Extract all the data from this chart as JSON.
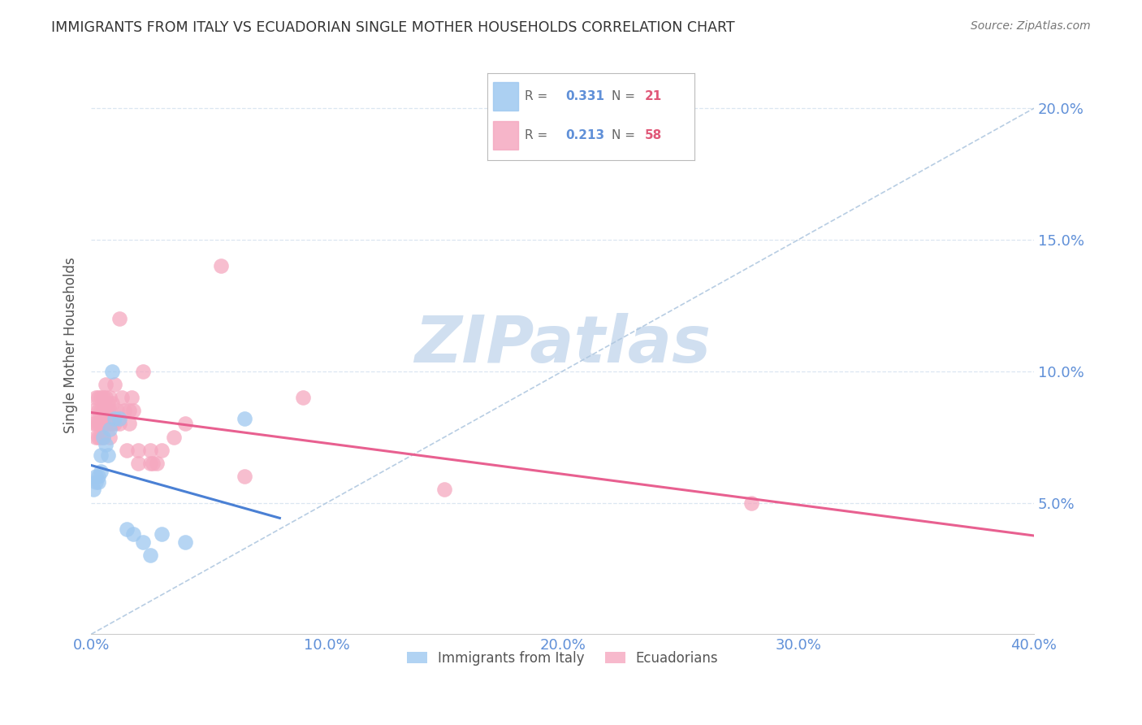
{
  "title": "IMMIGRANTS FROM ITALY VS ECUADORIAN SINGLE MOTHER HOUSEHOLDS CORRELATION CHART",
  "source": "Source: ZipAtlas.com",
  "ylabel": "Single Mother Households",
  "xlim": [
    0.0,
    0.4
  ],
  "ylim": [
    0.0,
    0.22
  ],
  "yticks": [
    0.05,
    0.1,
    0.15,
    0.2
  ],
  "xticks": [
    0.0,
    0.1,
    0.2,
    0.3,
    0.4
  ],
  "italy_R": 0.331,
  "italy_N": 21,
  "ecuador_R": 0.213,
  "ecuador_N": 58,
  "italy_color": "#9ec8f0",
  "ecuador_color": "#f5a8c0",
  "italy_line_color": "#4a80d4",
  "ecuador_line_color": "#e86090",
  "diagonal_line_color": "#b0c8e0",
  "axis_label_color": "#6090d8",
  "watermark_color": "#d0dff0",
  "grid_color": "#d8e4f0",
  "italy_x": [
    0.001,
    0.002,
    0.002,
    0.003,
    0.003,
    0.004,
    0.004,
    0.005,
    0.006,
    0.007,
    0.008,
    0.009,
    0.01,
    0.012,
    0.015,
    0.018,
    0.022,
    0.025,
    0.03,
    0.04,
    0.065
  ],
  "italy_y": [
    0.055,
    0.06,
    0.058,
    0.06,
    0.058,
    0.062,
    0.068,
    0.075,
    0.072,
    0.068,
    0.078,
    0.1,
    0.082,
    0.082,
    0.04,
    0.038,
    0.035,
    0.03,
    0.038,
    0.035,
    0.082
  ],
  "ecuador_x": [
    0.001,
    0.001,
    0.002,
    0.002,
    0.002,
    0.003,
    0.003,
    0.003,
    0.003,
    0.004,
    0.004,
    0.004,
    0.004,
    0.005,
    0.005,
    0.005,
    0.005,
    0.005,
    0.006,
    0.006,
    0.006,
    0.006,
    0.007,
    0.007,
    0.007,
    0.008,
    0.008,
    0.008,
    0.008,
    0.009,
    0.009,
    0.01,
    0.01,
    0.011,
    0.012,
    0.012,
    0.013,
    0.014,
    0.015,
    0.016,
    0.016,
    0.017,
    0.018,
    0.02,
    0.02,
    0.022,
    0.025,
    0.025,
    0.026,
    0.028,
    0.03,
    0.035,
    0.04,
    0.055,
    0.065,
    0.09,
    0.15,
    0.28
  ],
  "ecuador_y": [
    0.08,
    0.085,
    0.075,
    0.08,
    0.09,
    0.08,
    0.085,
    0.09,
    0.075,
    0.075,
    0.08,
    0.085,
    0.09,
    0.075,
    0.08,
    0.085,
    0.09,
    0.08,
    0.08,
    0.085,
    0.09,
    0.095,
    0.08,
    0.085,
    0.088,
    0.075,
    0.08,
    0.085,
    0.09,
    0.08,
    0.088,
    0.095,
    0.08,
    0.085,
    0.08,
    0.12,
    0.09,
    0.085,
    0.07,
    0.08,
    0.085,
    0.09,
    0.085,
    0.065,
    0.07,
    0.1,
    0.065,
    0.07,
    0.065,
    0.065,
    0.07,
    0.075,
    0.08,
    0.14,
    0.06,
    0.09,
    0.055,
    0.05
  ]
}
